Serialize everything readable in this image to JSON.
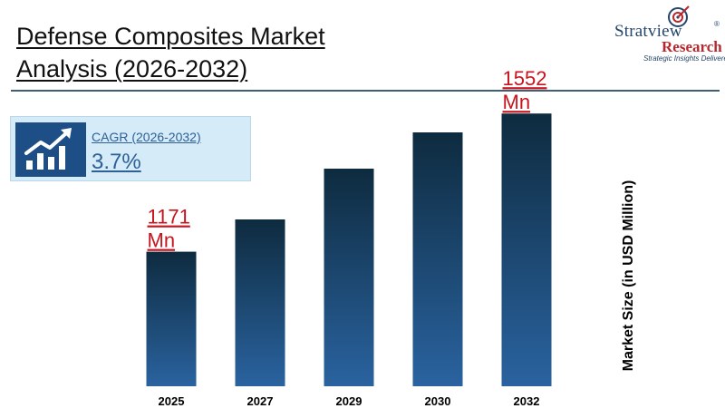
{
  "header": {
    "title_line1": "Defense Composites Market",
    "title_line2": "Analysis (2026-2032)"
  },
  "logo": {
    "name": "Stratview",
    "registered": "®",
    "research": "Research",
    "tagline": "Strategic Insights Delivered"
  },
  "cagr": {
    "label": "CAGR (2026-2032)",
    "value": "3.7%",
    "icon": "growth-chart-icon"
  },
  "colors": {
    "bar_top": "#0e2b3f",
    "bar_bottom": "#2a63a0",
    "callout": "#c8141e",
    "accent": "#1d4f86"
  },
  "chart_data": {
    "type": "bar",
    "categories": [
      "2025",
      "2027",
      "2029",
      "2030",
      "2032"
    ],
    "values": [
      1171,
      1260,
      1400,
      1500,
      1552
    ],
    "ylabel": "Market Size (in USD Million)",
    "ylim": [
      800,
      1600
    ],
    "callouts": [
      {
        "category": "2025",
        "value_text": "1171",
        "unit": "Mn"
      },
      {
        "category": "2032",
        "value_text": "1552",
        "unit": "Mn"
      }
    ],
    "grid": false,
    "legend": "none"
  }
}
